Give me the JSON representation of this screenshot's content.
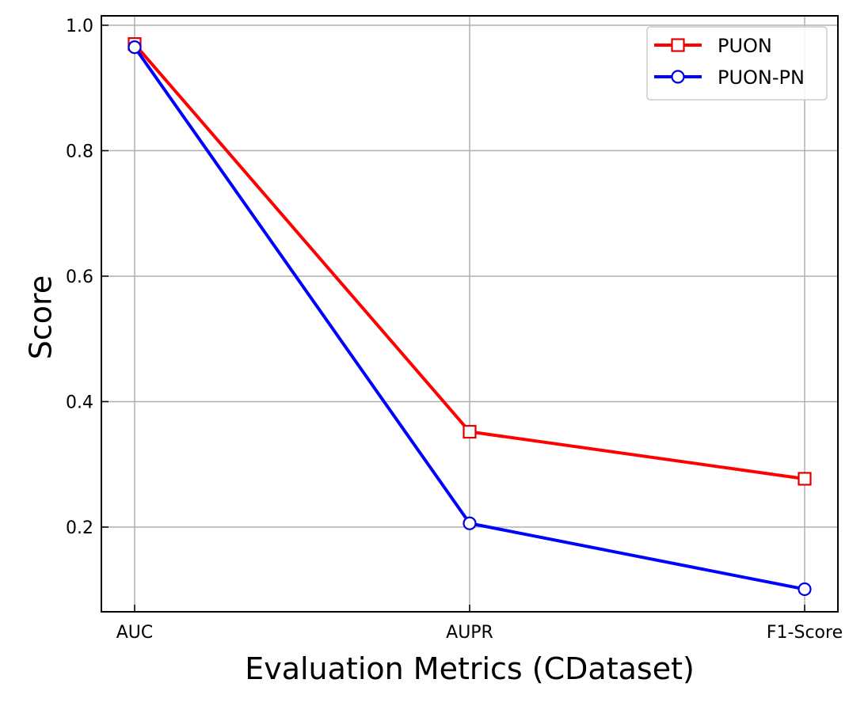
{
  "chart_data": {
    "type": "line",
    "title": "",
    "xlabel": "Evaluation Metrics (CDataset)",
    "ylabel": "Score",
    "categories": [
      "AUC",
      "AUPR",
      "F1-Score"
    ],
    "ylim": [
      0.065,
      1.015
    ],
    "yticks": [
      "0.2",
      "0.4",
      "0.6",
      "0.8",
      "1.0"
    ],
    "grid": true,
    "legend_position": "top-right",
    "series": [
      {
        "name": "PUON",
        "values": [
          0.97,
          0.352,
          0.277
        ],
        "color": "#ff0000",
        "marker": "square",
        "marker_edge_color": "#e00000"
      },
      {
        "name": "PUON-PN",
        "values": [
          0.965,
          0.206,
          0.101
        ],
        "color": "#0000ff",
        "marker": "circle",
        "marker_edge_color": "#0000dd"
      }
    ]
  }
}
